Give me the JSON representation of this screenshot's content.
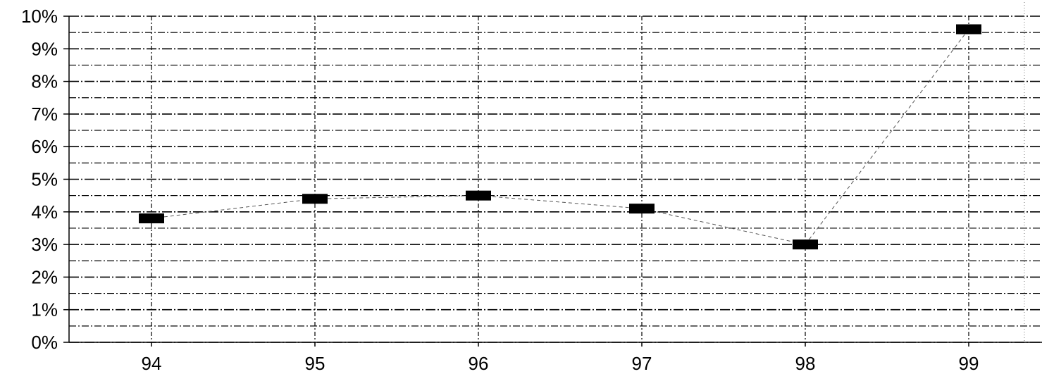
{
  "chart_data": {
    "type": "line",
    "categories": [
      "94",
      "95",
      "96",
      "97",
      "98",
      "99"
    ],
    "series": [
      {
        "values": [
          3.8,
          4.4,
          4.5,
          4.1,
          3.0,
          9.6
        ]
      }
    ],
    "ylim": [
      0,
      10
    ],
    "ytick_values": [
      0,
      1,
      2,
      3,
      4,
      5,
      6,
      7,
      8,
      9,
      10
    ],
    "ytick_labels": [
      "0%",
      "1%",
      "2%",
      "3%",
      "4%",
      "5%",
      "6%",
      "7%",
      "8%",
      "9%",
      "10%"
    ],
    "grid": true,
    "minor_grid": true,
    "legend": "none",
    "colors": {
      "marker": "#000000",
      "line": "#555555",
      "grid": "#000000",
      "background": "#ffffff"
    }
  }
}
